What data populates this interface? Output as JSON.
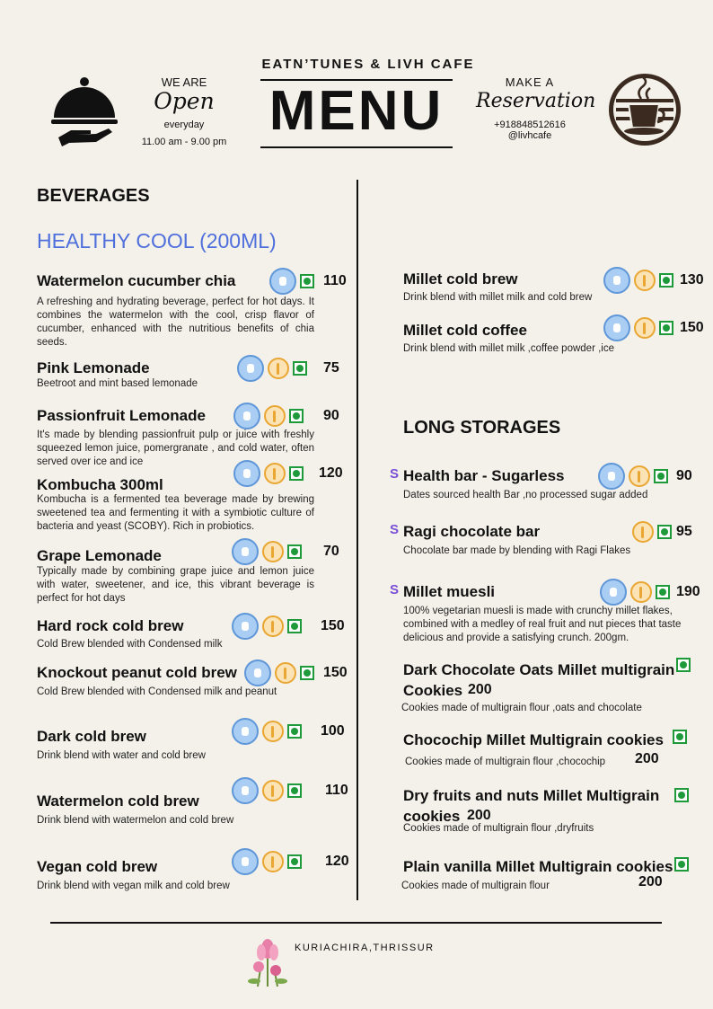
{
  "header": {
    "cafe_name": "EATN’TUNES & LIVH CAFE",
    "menu_title": "MENU",
    "we_are": "WE ARE",
    "open": "Open",
    "everyday": "everyday",
    "hours": "11.00 am - 9.00 pm",
    "make_a": "MAKE A",
    "reservation": "Reservation",
    "phone": "+918848512616",
    "handle": "@livhcafe"
  },
  "left": {
    "section": "BEVERAGES",
    "subsection": "HEALTHY COOL (200ML)",
    "items": [
      {
        "name": "Watermelon cucumber chia",
        "price": "110",
        "desc": "A refreshing and hydrating beverage, perfect for hot days. It combines the  watermelon with the cool, crisp flavor of cucumber, enhanced with the nutritious benefits of chia seeds."
      },
      {
        "name": "Pink Lemonade",
        "price": "75",
        "desc": "Beetroot and mint based lemonade"
      },
      {
        "name": "Passionfruit Lemonade",
        "price": "90",
        "desc": " It's made by blending passionfruit pulp or juice with freshly squeezed lemon juice, pomergranate , and cold water, often served over ice and ice"
      },
      {
        "name": "Kombucha 300ml",
        "price": "120",
        "desc": "Kombucha is a fermented tea beverage made by brewing sweetened tea and fermenting it with a symbiotic culture of bacteria and yeast (SCOBY). Rich in probiotics."
      },
      {
        "name": "Grape Lemonade",
        "price": "70",
        "desc": "Typically made by combining grape juice and lemon juice with water, sweetener, and ice, this vibrant beverage is perfect for hot days"
      },
      {
        "name": "Hard rock cold brew",
        "price": "150",
        "desc": "Cold Brew blended with Condensed milk"
      },
      {
        "name": "Knockout peanut cold brew",
        "price": "150",
        "desc": "Cold Brew blended with Condensed milk and peanut"
      },
      {
        "name": "Dark cold brew",
        "price": "100",
        "desc": "Drink blend  with water and cold brew"
      },
      {
        "name": "Watermelon cold brew",
        "price": "110",
        "desc": "Drink blend with watermelon and cold brew"
      },
      {
        "name": "Vegan cold brew",
        "price": "120",
        "desc": "Drink blend with vegan milk and cold brew"
      }
    ]
  },
  "right": {
    "items_top": [
      {
        "name": "Millet cold brew",
        "price": "130",
        "desc": "Drink blend with millet milk and cold brew"
      },
      {
        "name": "Millet cold coffee",
        "price": "150",
        "desc": "Drink blend with millet milk ,coffee powder ,ice"
      }
    ],
    "section": "LONG STORAGES",
    "s_mark": "S",
    "items_storage": [
      {
        "name": "Health bar - Sugarless",
        "price": "90",
        "desc": "Dates sourced health Bar ,no processed sugar added"
      },
      {
        "name": "Ragi chocolate bar",
        "price": "95",
        "desc": "Chocolate bar made by blending with Ragi Flakes"
      },
      {
        "name": "Millet muesli",
        "price": "190",
        "desc": "100% vegetarian muesli is made with crunchy millet flakes, combined with a medley of real fruit and nut pieces that taste delicious and provide a satisfying crunch. 200gm."
      }
    ],
    "cookies": [
      {
        "name_l1": "Dark Chocolate Oats Millet multigrain",
        "name_l2": "Cookies",
        "price": "200",
        "desc": "Cookies made of multigrain flour ,oats and chocolate"
      },
      {
        "name_l1": "Chocochip Millet Multigrain cookies",
        "price": "200",
        "desc": "Cookies made of multigrain flour ,chocochip"
      },
      {
        "name_l1": "Dry fruits and nuts Millet Multigrain",
        "name_l2": "cookies",
        "price": "200",
        "desc": "Cookies made of multigrain flour ,dryfruits"
      },
      {
        "name_l1": "Plain vanilla Millet Multigrain cookies",
        "price": "200",
        "desc": "Cookies made of multigrain flour"
      }
    ]
  },
  "footer": {
    "location": "KURIACHIRA,THRISSUR"
  },
  "colors": {
    "accent_blue": "#4f6fdc",
    "veg_green": "#1e9a3b",
    "s_purple": "#7b4fd6"
  },
  "icons": [
    "cloche-icon",
    "coffee-cup-icon",
    "gluten-free-badge-icon",
    "wheat-icon",
    "veg-mark-icon",
    "lotus-flower-icon"
  ]
}
